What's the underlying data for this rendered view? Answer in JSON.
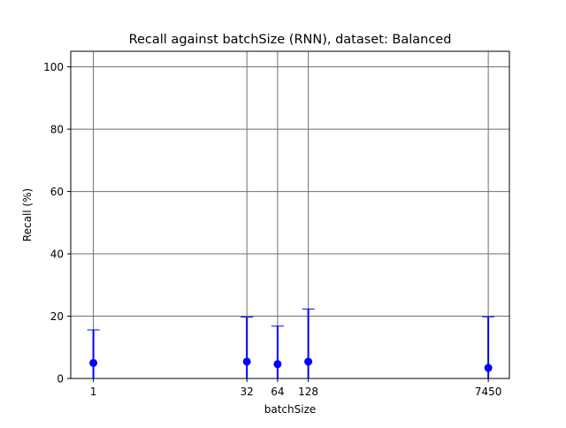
{
  "chart_data": {
    "type": "scatter",
    "title": "Recall against batchSize (RNN), dataset: Balanced",
    "xlabel": "batchSize",
    "ylabel": "Recall (%)",
    "x_scale": "log",
    "xlim": [
      0.6,
      12000
    ],
    "ylim": [
      0,
      105
    ],
    "x_ticks": [
      "1",
      "32",
      "64",
      "128",
      "7450"
    ],
    "y_ticks": [
      "0",
      "20",
      "40",
      "60",
      "80",
      "100"
    ],
    "grid": true,
    "legend": "none",
    "points": [
      {
        "x": 1,
        "x_label": "1",
        "y": 5.0,
        "y_low": 0.0,
        "y_high": 15.6
      },
      {
        "x": 32,
        "x_label": "32",
        "y": 5.4,
        "y_low": 0.0,
        "y_high": 19.7
      },
      {
        "x": 64,
        "x_label": "64",
        "y": 4.6,
        "y_low": 0.0,
        "y_high": 16.8
      },
      {
        "x": 128,
        "x_label": "128",
        "y": 5.4,
        "y_low": 0.0,
        "y_high": 22.3
      },
      {
        "x": 7450,
        "x_label": "7450",
        "y": 3.4,
        "y_low": 0.0,
        "y_high": 19.8
      }
    ],
    "colors": {
      "marker": "#0000ff",
      "errorbar": "#0000ff",
      "grid": "#6e6e6e",
      "axes": "#000000"
    }
  }
}
